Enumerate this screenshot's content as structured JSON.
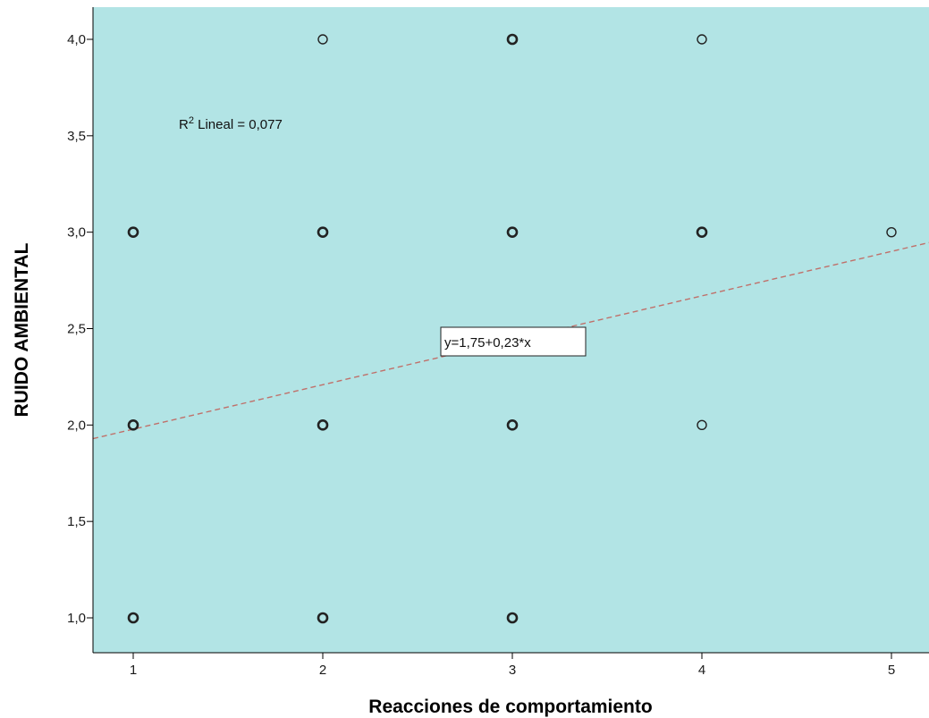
{
  "chart_data": {
    "type": "scatter",
    "xlabel": "Reacciones de comportamiento",
    "ylabel": "RUIDO AMBIENTAL",
    "xlim": [
      0.78,
      5.2
    ],
    "ylim": [
      0.82,
      4.2
    ],
    "x_ticks": [
      1,
      2,
      3,
      4,
      5
    ],
    "x_tick_labels": [
      "1",
      "2",
      "3",
      "4",
      "5"
    ],
    "y_ticks": [
      1.0,
      1.5,
      2.0,
      2.5,
      3.0,
      3.5,
      4.0
    ],
    "y_tick_labels": [
      "1,0",
      "1,5",
      "2,0",
      "2,5",
      "3,0",
      "3,5",
      "4,0"
    ],
    "grid": false,
    "plot_background": "#b2e4e5",
    "point_color": "#222222",
    "points": [
      {
        "x": 1,
        "y": 1,
        "bold": true
      },
      {
        "x": 1,
        "y": 2,
        "bold": true
      },
      {
        "x": 1,
        "y": 3,
        "bold": true
      },
      {
        "x": 2,
        "y": 1,
        "bold": true
      },
      {
        "x": 2,
        "y": 2,
        "bold": true
      },
      {
        "x": 2,
        "y": 3,
        "bold": true
      },
      {
        "x": 2,
        "y": 4,
        "bold": false
      },
      {
        "x": 3,
        "y": 1,
        "bold": true
      },
      {
        "x": 3,
        "y": 2,
        "bold": true
      },
      {
        "x": 3,
        "y": 3,
        "bold": true
      },
      {
        "x": 3,
        "y": 4,
        "bold": true
      },
      {
        "x": 4,
        "y": 2,
        "bold": false
      },
      {
        "x": 4,
        "y": 3,
        "bold": true
      },
      {
        "x": 4,
        "y": 4,
        "bold": false
      },
      {
        "x": 5,
        "y": 3,
        "bold": false
      }
    ],
    "fit_line": {
      "intercept": 1.75,
      "slope": 0.23,
      "color": "#c0706a",
      "style": "dashed"
    },
    "equation_label": "y=1,75+0,23*x",
    "r2_label": {
      "prefix": "R",
      "superscript": "2",
      "text": " Lineal = 0,077"
    }
  }
}
